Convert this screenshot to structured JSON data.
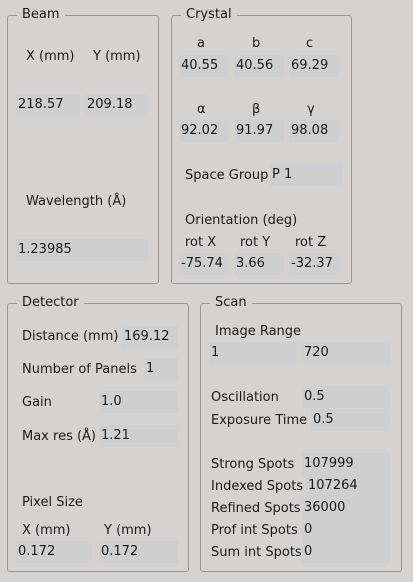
{
  "beam": {
    "title": "Beam",
    "x_label": "X (mm)",
    "y_label": "Y (mm)",
    "x_value": "218.57",
    "y_value": "209.18",
    "wavelength_label": "Wavelength (Å)",
    "wavelength_value": "1.23985"
  },
  "crystal": {
    "title": "Crystal",
    "a_label": "a",
    "b_label": "b",
    "c_label": "c",
    "a_value": "40.55",
    "b_value": "40.56",
    "c_value": "69.29",
    "alpha_label": "α",
    "beta_label": "β",
    "gamma_label": "γ",
    "alpha_value": "92.02",
    "beta_value": "91.97",
    "gamma_value": "98.08",
    "space_group_label": "Space Group",
    "space_group_value": "P 1",
    "orientation_label": "Orientation (deg)",
    "rotx_label": "rot X",
    "roty_label": "rot Y",
    "rotz_label": "rot Z",
    "rotx_value": "-75.74",
    "roty_value": "3.66",
    "rotz_value": "-32.37"
  },
  "detector": {
    "title": "Detector",
    "distance_label": "Distance (mm)",
    "distance_value": "169.12",
    "panels_label": "Number of Panels",
    "panels_value": "1",
    "gain_label": "Gain",
    "gain_value": "1.0",
    "maxres_label": "Max res (Å)",
    "maxres_value": "1.21",
    "pixel_size_label": "Pixel Size",
    "px_label": "X (mm)",
    "py_label": "Y (mm)",
    "px_value": "0.172",
    "py_value": "0.172"
  },
  "scan": {
    "title": "Scan",
    "image_range_label": "Image Range",
    "range_start": "1",
    "range_end": "720",
    "oscillation_label": "Oscillation",
    "oscillation_value": "0.5",
    "exposure_label": "Exposure Time",
    "exposure_value": "0.5",
    "strong_label": "Strong Spots",
    "strong_value": "107999",
    "indexed_label": "Indexed Spots",
    "indexed_value": "107264",
    "refined_label": "Refined Spots",
    "refined_value": "36000",
    "prof_label": "Prof int Spots",
    "prof_value": "0",
    "sum_label": "Sum int Spots",
    "sum_value": "0"
  }
}
